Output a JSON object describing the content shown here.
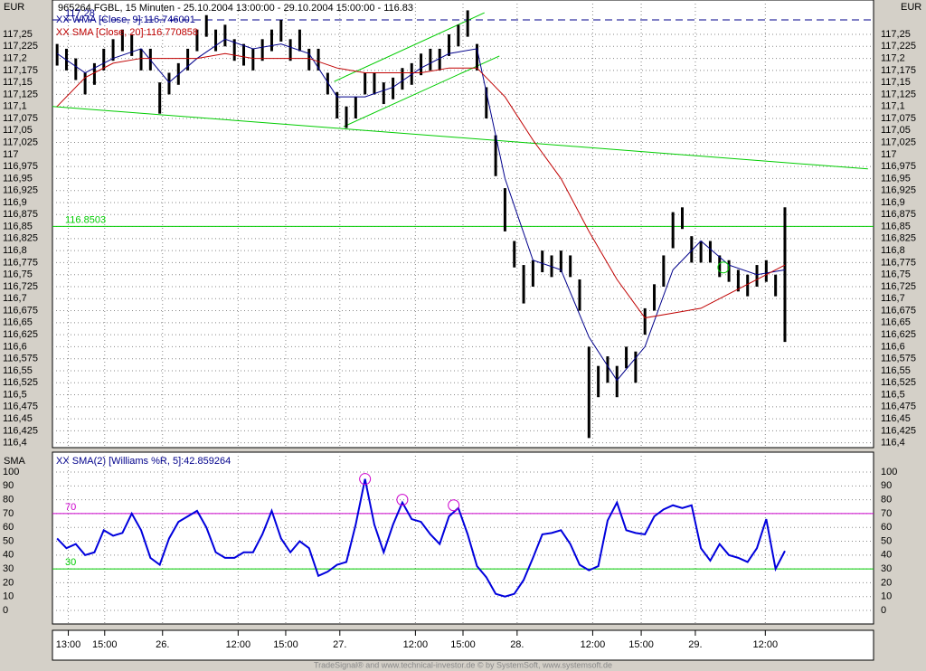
{
  "header": "965264  FGBL, 15 Minuten - 25.10.2004 13:00:00 - 29.10.2004 15:00:00 - 116.83",
  "footer": "TradeSignal® and www.technical-investor.de © by SystemSoft, www.systemsoft.de",
  "chart_data": [
    {
      "type": "ohlc",
      "axis_label": "EUR",
      "color": "#000000",
      "high": [
        117.23,
        117.22,
        117.2,
        117.17,
        117.19,
        117.22,
        117.24,
        117.26,
        117.25,
        117.22,
        117.22,
        117.15,
        117.17,
        117.19,
        117.22,
        117.26,
        117.29,
        117.26,
        117.27,
        117.24,
        117.23,
        117.22,
        117.24,
        117.26,
        117.28,
        117.24,
        117.26,
        117.22,
        117.22,
        117.17,
        117.13,
        117.1,
        117.12,
        117.17,
        117.17,
        117.15,
        117.16,
        117.18,
        117.19,
        117.21,
        117.22,
        117.22,
        117.25,
        117.27,
        117.3,
        117.23,
        117.14,
        117.04,
        116.93,
        116.82,
        116.77,
        116.78,
        116.8,
        116.79,
        116.8,
        116.79,
        116.74,
        116.6,
        116.56,
        116.58,
        116.56,
        116.6,
        116.59,
        116.68,
        116.73,
        116.79,
        116.88,
        116.89,
        116.83,
        116.82,
        116.82,
        116.79,
        116.78,
        116.76,
        116.75,
        116.77,
        116.78,
        116.75,
        116.89
      ],
      "low": [
        117.185,
        117.175,
        117.155,
        117.125,
        117.145,
        117.175,
        117.195,
        117.215,
        117.205,
        117.175,
        117.175,
        117.085,
        117.125,
        117.145,
        117.175,
        117.215,
        117.245,
        117.215,
        117.225,
        117.195,
        117.185,
        117.175,
        117.195,
        117.215,
        117.235,
        117.195,
        117.215,
        117.175,
        117.175,
        117.125,
        117.075,
        117.055,
        117.075,
        117.125,
        117.125,
        117.105,
        117.115,
        117.135,
        117.145,
        117.165,
        117.175,
        117.175,
        117.205,
        117.225,
        117.245,
        117.175,
        117.075,
        116.955,
        116.84,
        116.765,
        116.69,
        116.725,
        116.755,
        116.745,
        116.755,
        116.745,
        116.675,
        116.41,
        116.495,
        116.525,
        116.495,
        116.555,
        116.525,
        116.625,
        116.675,
        116.725,
        116.805,
        116.845,
        116.775,
        116.775,
        116.775,
        116.745,
        116.735,
        116.715,
        116.705,
        116.725,
        116.735,
        116.705,
        116.61
      ],
      "xlim": [
        -0.5,
        87.5
      ],
      "xticks": [
        {
          "value": 1.2,
          "label": "13:00"
        },
        {
          "value": 5.1,
          "label": "15:00"
        },
        {
          "value": 11.3,
          "label": "26."
        },
        {
          "value": 19.4,
          "label": "12:00"
        },
        {
          "value": 24.5,
          "label": "15:00"
        },
        {
          "value": 30.3,
          "label": "27."
        },
        {
          "value": 38.4,
          "label": "12:00"
        },
        {
          "value": 43.5,
          "label": "15:00"
        },
        {
          "value": 49.3,
          "label": "28."
        },
        {
          "value": 57.4,
          "label": "12:00"
        },
        {
          "value": 62.6,
          "label": "15:00"
        },
        {
          "value": 68.4,
          "label": "29."
        },
        {
          "value": 75.9,
          "label": "12:00"
        }
      ],
      "ylim": [
        116.39,
        117.3215
      ],
      "yticks": [
        {
          "value": 117.25,
          "label": "117,25"
        },
        {
          "value": 117.225,
          "label": "117,225"
        },
        {
          "value": 117.2,
          "label": "117,2"
        },
        {
          "value": 117.175,
          "label": "117,175"
        },
        {
          "value": 117.15,
          "label": "117,15"
        },
        {
          "value": 117.125,
          "label": "117,125"
        },
        {
          "value": 117.1,
          "label": "117,1"
        },
        {
          "value": 117.075,
          "label": "117,075"
        },
        {
          "value": 117.05,
          "label": "117,05"
        },
        {
          "value": 117.025,
          "label": "117,025"
        },
        117,
        {
          "value": 116.975,
          "label": "116,975"
        },
        {
          "value": 116.95,
          "label": "116,95"
        },
        {
          "value": 116.925,
          "label": "116,925"
        },
        {
          "value": 116.9,
          "label": "116,9"
        },
        {
          "value": 116.875,
          "label": "116,875"
        },
        {
          "value": 116.85,
          "label": "116,85"
        },
        {
          "value": 116.825,
          "label": "116,825"
        },
        {
          "value": 116.8,
          "label": "116,8"
        },
        {
          "value": 116.775,
          "label": "116,775"
        },
        {
          "value": 116.75,
          "label": "116,75"
        },
        {
          "value": 116.725,
          "label": "116,725"
        },
        {
          "value": 116.7,
          "label": "116,7"
        },
        {
          "value": 116.675,
          "label": "116,675"
        },
        {
          "value": 116.65,
          "label": "116,65"
        },
        {
          "value": 116.625,
          "label": "116,625"
        },
        {
          "value": 116.6,
          "label": "116,6"
        },
        {
          "value": 116.575,
          "label": "116,575"
        },
        {
          "value": 116.55,
          "label": "116,55"
        },
        {
          "value": 116.525,
          "label": "116,525"
        },
        {
          "value": 116.5,
          "label": "116,5"
        },
        {
          "value": 116.475,
          "label": "116,475"
        },
        {
          "value": 116.45,
          "label": "116,45"
        },
        {
          "value": 116.425,
          "label": "116,425"
        },
        {
          "value": 116.4,
          "label": "116,4"
        }
      ],
      "grid": true,
      "overlays": [
        {
          "name": "XX WMA [Close, 9]:116.746001",
          "color": "#00008b",
          "x": [
            0,
            3,
            6,
            9,
            12,
            15,
            18,
            21,
            24,
            27,
            30,
            33,
            36,
            39,
            42,
            45,
            48,
            51,
            54,
            57,
            60,
            63,
            66,
            69,
            72,
            75,
            78
          ],
          "values": [
            117.21,
            117.17,
            117.2,
            117.22,
            117.15,
            117.2,
            117.24,
            117.22,
            117.23,
            117.21,
            117.12,
            117.12,
            117.14,
            117.18,
            117.21,
            117.22,
            116.95,
            116.78,
            116.76,
            116.62,
            116.53,
            116.6,
            116.76,
            116.82,
            116.77,
            116.75,
            116.76
          ]
        },
        {
          "name": "XX SMA [Close, 20]:116.770858",
          "color": "#c00000",
          "x": [
            0,
            3,
            6,
            9,
            12,
            15,
            18,
            21,
            24,
            27,
            30,
            33,
            36,
            39,
            42,
            45,
            48,
            51,
            54,
            57,
            60,
            63,
            66,
            69,
            72,
            75,
            78
          ],
          "values": [
            117.1,
            117.16,
            117.19,
            117.2,
            117.2,
            117.2,
            117.21,
            117.2,
            117.2,
            117.2,
            117.18,
            117.17,
            117.17,
            117.17,
            117.18,
            117.18,
            117.12,
            117.03,
            116.95,
            116.84,
            116.74,
            116.66,
            116.67,
            116.68,
            116.71,
            116.74,
            116.77
          ]
        }
      ],
      "hlines": [
        {
          "value": 117.28,
          "color": "#00008b",
          "dashed": true
        },
        {
          "value": 116.8503,
          "color": "#00cc00",
          "dashed": false
        }
      ],
      "trendlines": [
        {
          "color": "#00cc00",
          "x": [
            -0.5,
            86.9
          ],
          "values": [
            117.1,
            116.97
          ]
        },
        {
          "color": "#00cc00",
          "x": [
            30.7,
            47.4
          ],
          "values": [
            117.058,
            117.205
          ]
        },
        {
          "color": "#00cc00",
          "x": [
            29.7,
            45.8
          ],
          "values": [
            117.152,
            117.295
          ]
        }
      ],
      "markers": [
        {
          "x": 71.4,
          "value": 116.765,
          "color": "#00cc00"
        }
      ]
    },
    {
      "type": "line",
      "axis_label": "SMA",
      "series": [
        {
          "name": "XX SMA(2) [Williams %R, 5]:42.859264",
          "color": "#0000dd",
          "values": [
            52,
            45,
            48,
            40,
            42,
            58,
            54,
            56,
            70,
            58,
            38,
            33,
            52,
            64,
            68,
            72,
            60,
            42,
            38,
            38,
            42,
            42,
            55,
            72,
            52,
            42,
            50,
            45,
            25,
            28,
            33,
            35,
            62,
            95,
            62,
            42,
            62,
            78,
            66,
            64,
            55,
            48,
            68,
            74,
            55,
            32,
            24,
            12,
            10,
            12,
            22,
            38,
            55,
            56,
            58,
            48,
            33,
            29,
            32,
            65,
            78,
            58,
            56,
            55,
            68,
            73,
            76,
            74,
            76,
            45,
            36,
            48,
            40,
            38,
            35,
            45,
            66,
            30,
            43
          ]
        }
      ],
      "ylim": [
        -9.8,
        114.4
      ],
      "yticks": [
        0,
        10,
        20,
        30,
        40,
        50,
        60,
        70,
        80,
        90,
        100
      ],
      "grid": true,
      "hlines": [
        {
          "value": 70,
          "color": "#cc00cc",
          "dashed": false
        },
        {
          "value": 30,
          "color": "#00cc00",
          "dashed": false
        }
      ],
      "markers": [
        {
          "x": 33,
          "value": 95,
          "color": "#cc00cc"
        },
        {
          "x": 37,
          "value": 80,
          "color": "#cc00cc"
        },
        {
          "x": 42.5,
          "value": 76,
          "color": "#cc00cc"
        }
      ]
    }
  ]
}
